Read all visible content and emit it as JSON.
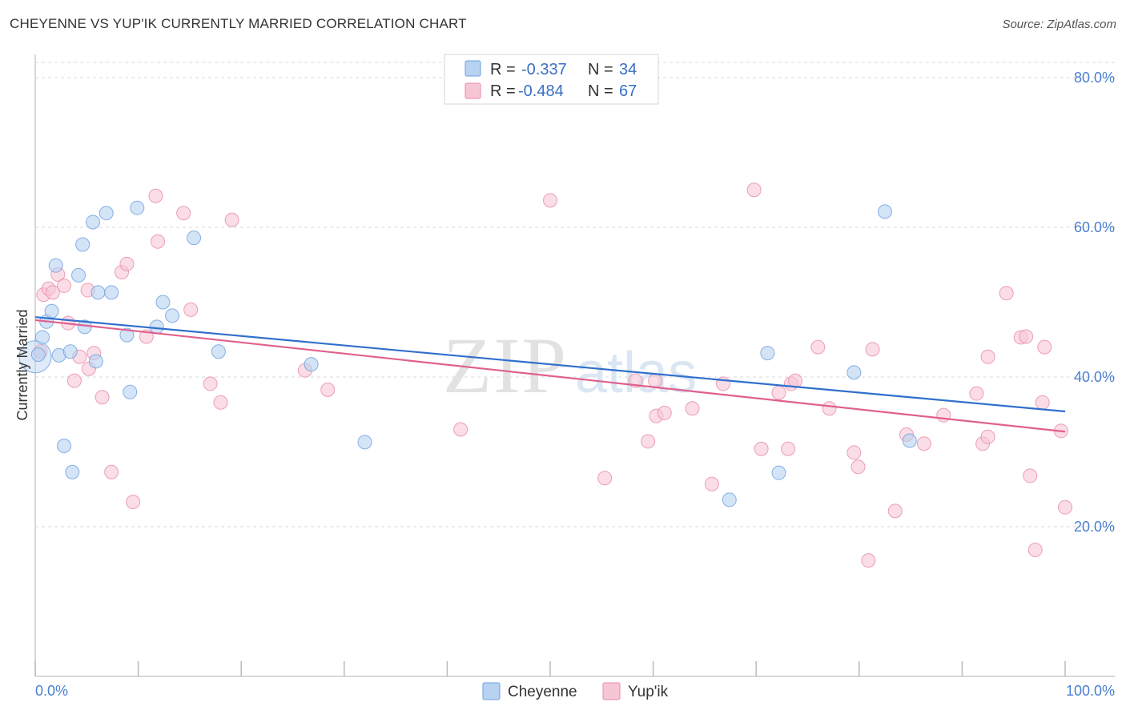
{
  "title": "CHEYENNE VS YUP'IK CURRENTLY MARRIED CORRELATION CHART",
  "source": "Source: ZipAtlas.com",
  "watermark": {
    "zip": "ZIP",
    "atlas": "atlas"
  },
  "colors": {
    "cheyenne_fill": "#b8d2f2",
    "cheyenne_stroke": "#6d9ee0",
    "cheyenne_line": "#2f6fcc",
    "yupik_fill": "#f7c6d5",
    "yupik_stroke": "#e98aa8",
    "yupik_line": "#e0608c",
    "axis_text": "#4a7fd0",
    "grid": "#d8d8d8"
  },
  "legend": {
    "rows": [
      {
        "r_label": "R =",
        "r_value": "-0.337",
        "n_label": "N =",
        "n_value": "34"
      },
      {
        "r_label": "R =",
        "r_value": "-0.484",
        "n_label": "N =",
        "n_value": "67"
      }
    ]
  },
  "bottom_legend": [
    "Cheyenne",
    "Yup'ik"
  ],
  "chart_data": {
    "type": "scatter",
    "title": "CHEYENNE VS YUP'IK CURRENTLY MARRIED CORRELATION CHART",
    "xlabel": "",
    "ylabel": "Currently Married",
    "xlim": [
      0,
      100
    ],
    "ylim": [
      0,
      85
    ],
    "x_tick_labels": [
      "0.0%",
      "100.0%"
    ],
    "y_ticks": [
      20,
      40,
      60,
      80
    ],
    "y_tick_labels": [
      "20.0%",
      "40.0%",
      "60.0%",
      "80.0%"
    ],
    "grid": true,
    "legend_position": "top-center",
    "series": [
      {
        "name": "Cheyenne",
        "R": -0.337,
        "N": 34,
        "trend": {
          "x": [
            0,
            100
          ],
          "y": [
            48.0,
            35.4
          ]
        },
        "points": [
          {
            "x": 0.0,
            "y": 42.7
          },
          {
            "x": 0.7,
            "y": 45.3
          },
          {
            "x": 1.1,
            "y": 47.4
          },
          {
            "x": 1.6,
            "y": 48.8
          },
          {
            "x": 2.0,
            "y": 54.9
          },
          {
            "x": 2.3,
            "y": 42.9
          },
          {
            "x": 2.8,
            "y": 30.8
          },
          {
            "x": 3.4,
            "y": 43.4
          },
          {
            "x": 3.6,
            "y": 27.3
          },
          {
            "x": 4.2,
            "y": 53.6
          },
          {
            "x": 4.6,
            "y": 57.7
          },
          {
            "x": 4.8,
            "y": 46.7
          },
          {
            "x": 5.6,
            "y": 60.7
          },
          {
            "x": 5.9,
            "y": 42.1
          },
          {
            "x": 6.1,
            "y": 51.3
          },
          {
            "x": 6.9,
            "y": 61.9
          },
          {
            "x": 7.4,
            "y": 51.3
          },
          {
            "x": 8.9,
            "y": 45.6
          },
          {
            "x": 9.2,
            "y": 38.0
          },
          {
            "x": 9.9,
            "y": 62.6
          },
          {
            "x": 11.8,
            "y": 46.7
          },
          {
            "x": 12.4,
            "y": 50.0
          },
          {
            "x": 13.3,
            "y": 48.2
          },
          {
            "x": 15.4,
            "y": 58.6
          },
          {
            "x": 17.8,
            "y": 43.4
          },
          {
            "x": 26.8,
            "y": 41.7
          },
          {
            "x": 32.0,
            "y": 31.3
          },
          {
            "x": 67.4,
            "y": 23.6
          },
          {
            "x": 71.1,
            "y": 43.2
          },
          {
            "x": 72.2,
            "y": 27.2
          },
          {
            "x": 79.5,
            "y": 40.6
          },
          {
            "x": 82.5,
            "y": 62.1
          },
          {
            "x": 84.9,
            "y": 31.5
          },
          {
            "x": 0.3,
            "y": 43.0
          }
        ]
      },
      {
        "name": "Yup'ik",
        "R": -0.484,
        "N": 67,
        "trend": {
          "x": [
            0,
            100
          ],
          "y": [
            47.6,
            32.7
          ]
        },
        "points": [
          {
            "x": 0.5,
            "y": 43.4
          },
          {
            "x": 0.8,
            "y": 51.0
          },
          {
            "x": 1.3,
            "y": 51.8
          },
          {
            "x": 1.7,
            "y": 51.3
          },
          {
            "x": 2.2,
            "y": 53.7
          },
          {
            "x": 2.8,
            "y": 52.2
          },
          {
            "x": 3.2,
            "y": 47.2
          },
          {
            "x": 3.8,
            "y": 39.5
          },
          {
            "x": 4.3,
            "y": 42.7
          },
          {
            "x": 5.1,
            "y": 51.6
          },
          {
            "x": 5.2,
            "y": 41.1
          },
          {
            "x": 5.7,
            "y": 43.2
          },
          {
            "x": 6.5,
            "y": 37.3
          },
          {
            "x": 7.4,
            "y": 27.3
          },
          {
            "x": 8.4,
            "y": 54.0
          },
          {
            "x": 8.9,
            "y": 55.1
          },
          {
            "x": 9.5,
            "y": 23.3
          },
          {
            "x": 10.8,
            "y": 45.4
          },
          {
            "x": 11.7,
            "y": 64.2
          },
          {
            "x": 11.9,
            "y": 58.1
          },
          {
            "x": 14.4,
            "y": 61.9
          },
          {
            "x": 15.1,
            "y": 49.0
          },
          {
            "x": 17.0,
            "y": 39.1
          },
          {
            "x": 18.0,
            "y": 36.6
          },
          {
            "x": 19.1,
            "y": 61.0
          },
          {
            "x": 26.2,
            "y": 40.9
          },
          {
            "x": 28.4,
            "y": 38.3
          },
          {
            "x": 41.3,
            "y": 33.0
          },
          {
            "x": 50.0,
            "y": 63.6
          },
          {
            "x": 55.3,
            "y": 26.5
          },
          {
            "x": 58.3,
            "y": 39.5
          },
          {
            "x": 59.5,
            "y": 31.4
          },
          {
            "x": 60.2,
            "y": 39.5
          },
          {
            "x": 60.3,
            "y": 34.8
          },
          {
            "x": 61.1,
            "y": 35.2
          },
          {
            "x": 63.8,
            "y": 35.8
          },
          {
            "x": 65.7,
            "y": 25.7
          },
          {
            "x": 66.8,
            "y": 39.1
          },
          {
            "x": 69.8,
            "y": 65.0
          },
          {
            "x": 70.5,
            "y": 30.4
          },
          {
            "x": 72.2,
            "y": 37.9
          },
          {
            "x": 73.1,
            "y": 30.4
          },
          {
            "x": 73.4,
            "y": 39.1
          },
          {
            "x": 73.8,
            "y": 39.5
          },
          {
            "x": 76.0,
            "y": 44.0
          },
          {
            "x": 77.1,
            "y": 35.8
          },
          {
            "x": 79.5,
            "y": 29.9
          },
          {
            "x": 79.9,
            "y": 28.0
          },
          {
            "x": 80.9,
            "y": 15.5
          },
          {
            "x": 81.3,
            "y": 43.7
          },
          {
            "x": 83.5,
            "y": 22.1
          },
          {
            "x": 84.6,
            "y": 32.3
          },
          {
            "x": 86.3,
            "y": 31.1
          },
          {
            "x": 88.2,
            "y": 34.9
          },
          {
            "x": 92.0,
            "y": 31.1
          },
          {
            "x": 92.5,
            "y": 32.0
          },
          {
            "x": 92.5,
            "y": 42.7
          },
          {
            "x": 94.3,
            "y": 51.2
          },
          {
            "x": 95.7,
            "y": 45.3
          },
          {
            "x": 96.2,
            "y": 45.4
          },
          {
            "x": 96.6,
            "y": 26.8
          },
          {
            "x": 97.1,
            "y": 16.9
          },
          {
            "x": 97.8,
            "y": 36.6
          },
          {
            "x": 98.0,
            "y": 44.0
          },
          {
            "x": 99.6,
            "y": 32.8
          },
          {
            "x": 100.0,
            "y": 22.6
          },
          {
            "x": 91.4,
            "y": 37.8
          }
        ]
      }
    ]
  }
}
